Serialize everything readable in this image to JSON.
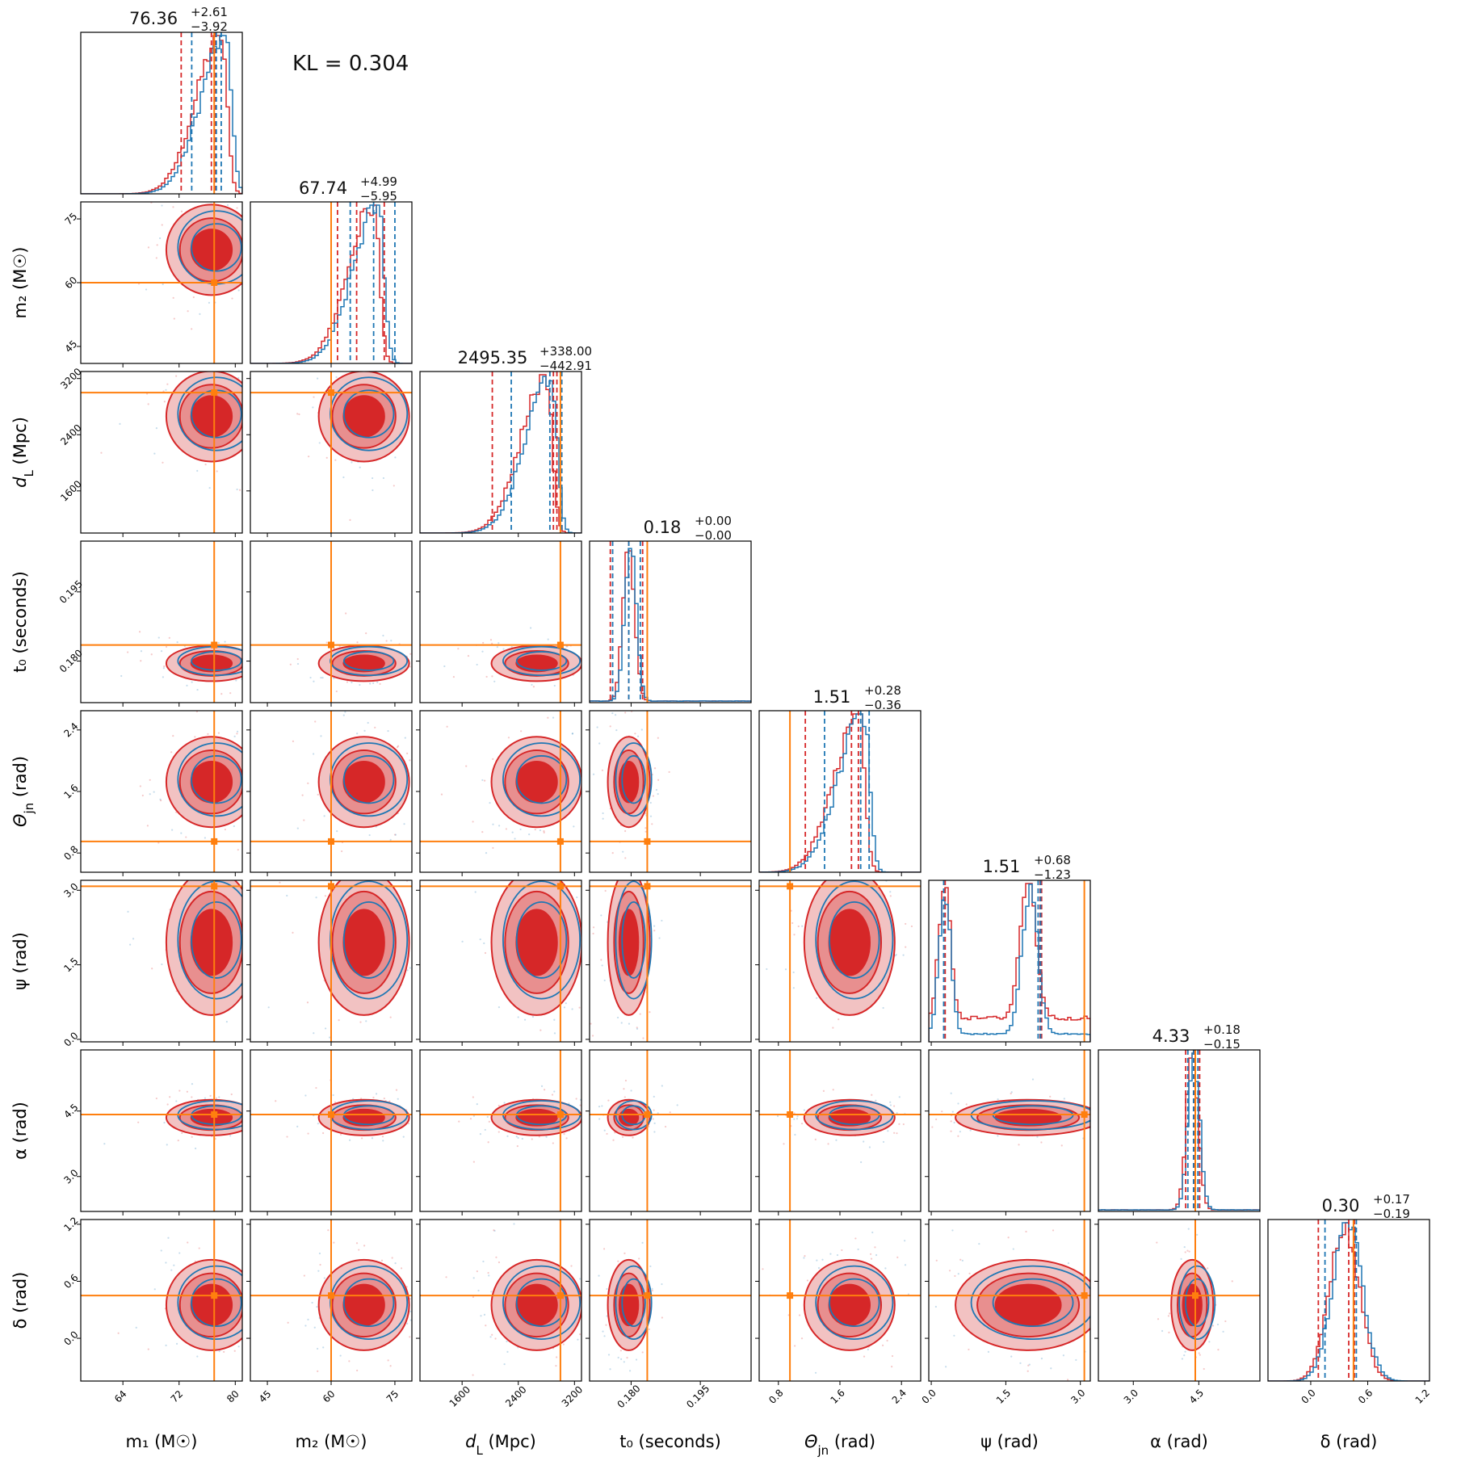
{
  "annotation": {
    "kl_text": "KL = 0.304"
  },
  "colors": {
    "red": "#d62728",
    "blue": "#1f77b4",
    "orange": "#ff7f0e",
    "red_fill_light": "#f2c2c2",
    "red_fill_mid": "#e88f8f"
  },
  "chart_data": {
    "type": "corner",
    "parameters": [
      {
        "id": "m1",
        "label": "m₁ (M☉)",
        "range": [
          58,
          81
        ],
        "ticks": [
          64,
          72,
          80
        ],
        "tick_labels": [
          "64",
          "72",
          "80"
        ],
        "truth": 77,
        "title_value": "76.36",
        "title_plus": "+2.61",
        "title_minus": "−3.92",
        "quantiles_red": [
          72.3,
          76.6,
          77.2
        ],
        "quantiles_blue": [
          73.8,
          77.3,
          78.0
        ],
        "peak": 78,
        "shape": "skew_right"
      },
      {
        "id": "m2",
        "label": "m₂ (M☉)",
        "range": [
          41,
          79
        ],
        "ticks": [
          45,
          60,
          75
        ],
        "tick_labels": [
          "45",
          "60",
          "75"
        ],
        "truth": 60,
        "title_value": "67.74",
        "title_plus": "+4.99",
        "title_minus": "−5.95",
        "quantiles_red": [
          61.5,
          66.0,
          72.5
        ],
        "quantiles_blue": [
          64.5,
          70.0,
          75.0
        ],
        "peak": 70,
        "shape": "skew_right"
      },
      {
        "id": "dL",
        "label": "d_L (Mpc)",
        "range": [
          1000,
          3300
        ],
        "ticks": [
          1600,
          2400,
          3200
        ],
        "tick_labels": [
          "1600",
          "2400",
          "3200"
        ],
        "truth": 3000,
        "title_value": "2495.35",
        "title_plus": "+338.00",
        "title_minus": "−442.91",
        "quantiles_red": [
          2030,
          2900,
          2950
        ],
        "quantiles_blue": [
          2300,
          2850,
          3020
        ],
        "peak": 2800,
        "shape": "skew_right"
      },
      {
        "id": "t0",
        "label": "t₀ (seconds)",
        "range": [
          0.171,
          0.206
        ],
        "ticks": [
          0.18,
          0.195
        ],
        "tick_labels": [
          "0.180",
          "0.195"
        ],
        "truth": 0.1835,
        "title_value": "0.18",
        "title_plus": "+0.00",
        "title_minus": "−0.00",
        "quantiles_red": [
          0.1755,
          0.1795,
          0.1825
        ],
        "quantiles_blue": [
          0.176,
          0.1795,
          0.182
        ],
        "peak": 0.1795,
        "shape": "narrow"
      },
      {
        "id": "theta",
        "label": "Θ_jn (rad)",
        "range": [
          0.55,
          2.65
        ],
        "ticks": [
          0.8,
          1.6,
          2.4
        ],
        "tick_labels": [
          "0.8",
          "1.6",
          "2.4"
        ],
        "truth": 0.95,
        "title_value": "1.51",
        "title_plus": "+0.28",
        "title_minus": "−0.36",
        "quantiles_red": [
          1.15,
          1.75,
          1.84
        ],
        "quantiles_blue": [
          1.4,
          1.87,
          1.98
        ],
        "peak": 1.85,
        "shape": "skew_right"
      },
      {
        "id": "psi",
        "label": "ψ (rad)",
        "range": [
          -0.05,
          3.2
        ],
        "ticks": [
          0.0,
          1.5,
          3.0
        ],
        "tick_labels": [
          "0.0",
          "1.5",
          "3.0"
        ],
        "truth": 3.08,
        "title_value": "1.51",
        "title_plus": "+0.68",
        "title_minus": "−1.23",
        "quantiles_red": [
          0.28,
          2.19,
          2.22
        ],
        "quantiles_blue": [
          0.25,
          2.15,
          2.2
        ],
        "peak": 1.95,
        "shape": "bimodal"
      },
      {
        "id": "alpha",
        "label": "α (rad)",
        "range": [
          2.2,
          5.9
        ],
        "ticks": [
          3.0,
          4.5
        ],
        "tick_labels": [
          "3.0",
          "4.5"
        ],
        "truth": 4.42,
        "title_value": "4.33",
        "title_plus": "+0.18",
        "title_minus": "−0.15",
        "quantiles_red": [
          4.2,
          4.4,
          4.52
        ],
        "quantiles_blue": [
          4.25,
          4.38,
          4.48
        ],
        "peak": 4.35,
        "shape": "narrow"
      },
      {
        "id": "delta",
        "label": "δ (rad)",
        "range": [
          -0.45,
          1.25
        ],
        "ticks": [
          0.0,
          0.6,
          1.2
        ],
        "tick_labels": [
          "0.0",
          "0.6",
          "1.2"
        ],
        "truth": 0.45,
        "title_value": "0.30",
        "title_plus": "+0.17",
        "title_minus": "−0.19",
        "quantiles_red": [
          0.08,
          0.4,
          0.46
        ],
        "quantiles_blue": [
          0.15,
          0.45,
          0.48
        ],
        "peak": 0.35,
        "shape": "normal"
      }
    ]
  }
}
